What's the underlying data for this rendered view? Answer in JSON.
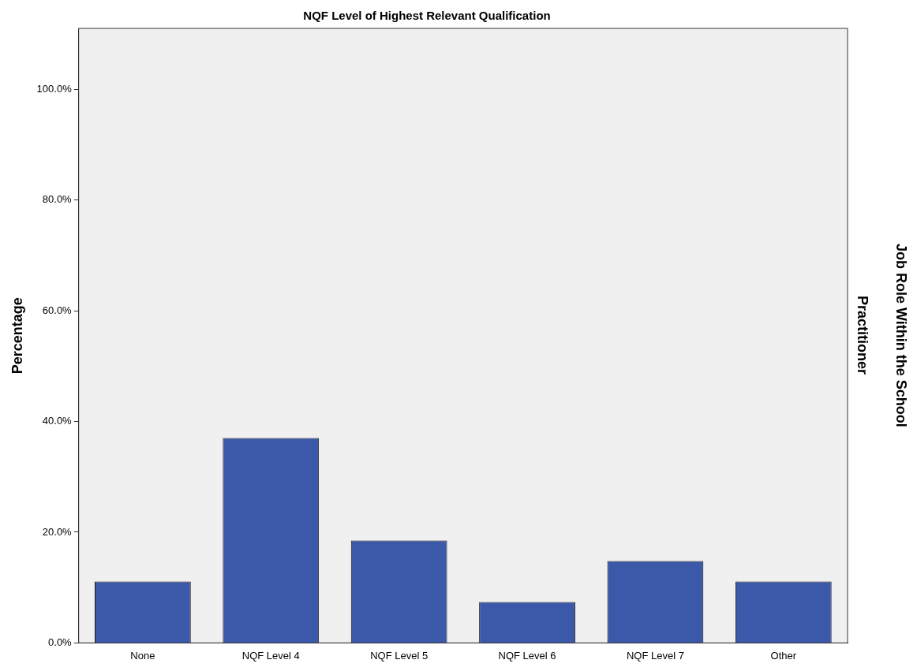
{
  "chart_data": {
    "type": "bar",
    "title": "NQF Level of Highest Relevant Qualification",
    "ylabel": "Percentage",
    "y2label": "Job Role Within the School",
    "annotations": [
      "Practitioner"
    ],
    "categories": [
      "None",
      "NQF Level 4",
      "NQF Level 5",
      "NQF Level 6",
      "NQF Level 7",
      "Other"
    ],
    "values": [
      11.1,
      37.0,
      18.5,
      7.4,
      14.8,
      11.1
    ],
    "color": "#3c58a8",
    "ylim": [
      0,
      111
    ],
    "yticks": [
      {
        "value": 0,
        "label": "0.0%"
      },
      {
        "value": 20,
        "label": "20.0%"
      },
      {
        "value": 40,
        "label": "40.0%"
      },
      {
        "value": 60,
        "label": "60.0%"
      },
      {
        "value": 80,
        "label": "80.0%"
      },
      {
        "value": 100,
        "label": "100.0%"
      }
    ],
    "grid": false,
    "legend": false
  }
}
